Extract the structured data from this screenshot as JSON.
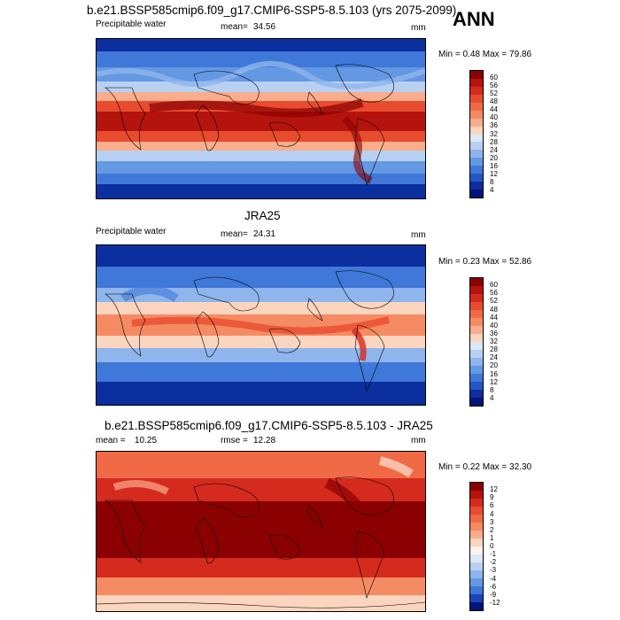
{
  "header": {
    "ann_label": "ANN"
  },
  "panels": [
    {
      "title": "b.e21.BSSP585cmip6.f09_g17.CMIP6-SSP5-8.5.103 (yrs 2075-2099)",
      "variable": "Precipitable water",
      "mean_label": "mean=",
      "mean_value": "34.56",
      "units": "mm",
      "minmax": "Min =   0.48 Max =  79.86",
      "colorbar": {
        "levels": [
          "60",
          "56",
          "52",
          "48",
          "44",
          "40",
          "36",
          "32",
          "28",
          "24",
          "20",
          "16",
          "12",
          "8",
          "4"
        ],
        "colors": [
          "#8b0000",
          "#b5140e",
          "#d42b1e",
          "#e84c2f",
          "#f06a45",
          "#f58b63",
          "#f9ad8c",
          "#fcd5bf",
          "#dce8f7",
          "#b8d1f2",
          "#8fb5ec",
          "#6498e3",
          "#3f78d8",
          "#2457c4",
          "#0b2f9f",
          "#00157a"
        ]
      }
    },
    {
      "title": "JRA25",
      "variable": "Precipitable water",
      "mean_label": "mean=",
      "mean_value": "24.31",
      "units": "mm",
      "minmax": "Min =   0.23 Max =  52.86",
      "colorbar": {
        "levels": [
          "60",
          "56",
          "52",
          "48",
          "44",
          "40",
          "36",
          "32",
          "28",
          "24",
          "20",
          "16",
          "12",
          "8",
          "4"
        ],
        "colors": [
          "#8b0000",
          "#b5140e",
          "#d42b1e",
          "#e84c2f",
          "#f06a45",
          "#f58b63",
          "#f9ad8c",
          "#fcd5bf",
          "#dce8f7",
          "#b8d1f2",
          "#8fb5ec",
          "#6498e3",
          "#3f78d8",
          "#2457c4",
          "#0b2f9f",
          "#00157a"
        ]
      }
    },
    {
      "title": "b.e21.BSSP585cmip6.f09_g17.CMIP6-SSP5-8.5.103 - JRA25",
      "mean_label": "mean =",
      "mean_value": "10.25",
      "rmse_label": "rmse =",
      "rmse_value": "12.28",
      "units": "mm",
      "minmax": "Min =   0.22 Max =  32.30",
      "colorbar": {
        "levels": [
          "12",
          "9",
          "6",
          "4",
          "3",
          "2",
          "1",
          "0",
          "-1",
          "-2",
          "-3",
          "-4",
          "-6",
          "-9",
          "-12"
        ],
        "colors": [
          "#8b0000",
          "#b5140e",
          "#d42b1e",
          "#e84c2f",
          "#f06a45",
          "#f58b63",
          "#f9ad8c",
          "#fcd5bf",
          "#fff3ec",
          "#dce8f7",
          "#b8d1f2",
          "#8fb5ec",
          "#6498e3",
          "#3f78d8",
          "#1c44b8",
          "#00157a"
        ]
      }
    }
  ]
}
